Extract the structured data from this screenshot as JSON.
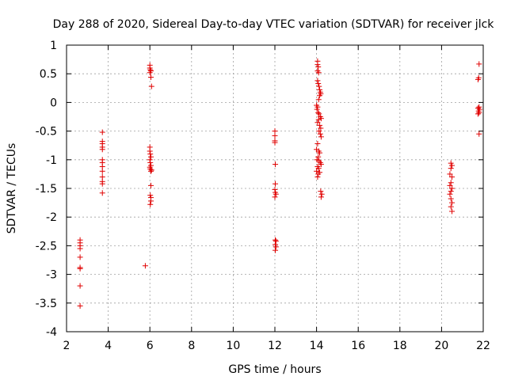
{
  "chart_data": {
    "type": "scatter",
    "title": "Day 288 of 2020, Sidereal Day-to-day VTEC variation (SDTVAR) for receiver jlck",
    "xlabel": "GPS time / hours",
    "ylabel": "SDTVAR / TECUs",
    "xlim": [
      2,
      22
    ],
    "ylim": [
      -4,
      1
    ],
    "xticks": [
      2,
      4,
      6,
      8,
      10,
      12,
      14,
      16,
      18,
      20,
      22
    ],
    "yticks": [
      -4,
      -3.5,
      -3,
      -2.5,
      -2,
      -1.5,
      -1,
      -0.5,
      0,
      0.5,
      1
    ],
    "xtick_labels": [
      "2",
      "4",
      "6",
      "8",
      "10",
      "12",
      "14",
      "16",
      "18",
      "20",
      "22"
    ],
    "ytick_labels": [
      "-4",
      "-3.5",
      "-3",
      "-2.5",
      "-2",
      "-1.5",
      "-1",
      "-0.5",
      "0",
      "0.5",
      "1"
    ],
    "grid": true,
    "marker": "+",
    "marker_color": "#e00000",
    "series": [
      {
        "name": "SDTVAR",
        "points": [
          [
            2.65,
            -2.4
          ],
          [
            2.65,
            -2.45
          ],
          [
            2.65,
            -2.5
          ],
          [
            2.65,
            -2.55
          ],
          [
            2.65,
            -2.7
          ],
          [
            2.65,
            -2.88
          ],
          [
            2.65,
            -2.9
          ],
          [
            2.65,
            -3.2
          ],
          [
            2.65,
            -3.55
          ],
          [
            3.72,
            -0.52
          ],
          [
            3.72,
            -0.68
          ],
          [
            3.72,
            -0.72
          ],
          [
            3.72,
            -0.78
          ],
          [
            3.72,
            -0.82
          ],
          [
            3.72,
            -1.0
          ],
          [
            3.72,
            -1.05
          ],
          [
            3.72,
            -1.12
          ],
          [
            3.72,
            -1.2
          ],
          [
            3.72,
            -1.3
          ],
          [
            3.72,
            -1.38
          ],
          [
            3.72,
            -1.42
          ],
          [
            3.72,
            -1.58
          ],
          [
            5.78,
            -2.85
          ],
          [
            6.0,
            0.65
          ],
          [
            6.0,
            0.6
          ],
          [
            6.02,
            0.57
          ],
          [
            6.05,
            0.55
          ],
          [
            6.0,
            0.52
          ],
          [
            6.05,
            0.44
          ],
          [
            6.08,
            0.28
          ],
          [
            6.0,
            -0.78
          ],
          [
            6.0,
            -0.85
          ],
          [
            6.02,
            -0.9
          ],
          [
            6.05,
            -0.95
          ],
          [
            6.0,
            -1.0
          ],
          [
            6.02,
            -1.05
          ],
          [
            6.05,
            -1.1
          ],
          [
            6.0,
            -1.13
          ],
          [
            6.02,
            -1.16
          ],
          [
            6.05,
            -1.2
          ],
          [
            6.08,
            -1.18
          ],
          [
            6.05,
            -1.45
          ],
          [
            6.02,
            -1.62
          ],
          [
            6.05,
            -1.66
          ],
          [
            6.05,
            -1.72
          ],
          [
            6.02,
            -1.78
          ],
          [
            12.0,
            -0.5
          ],
          [
            12.0,
            -0.58
          ],
          [
            12.0,
            -0.67
          ],
          [
            12.0,
            -0.7
          ],
          [
            12.02,
            -1.08
          ],
          [
            12.02,
            -1.42
          ],
          [
            12.0,
            -1.52
          ],
          [
            12.02,
            -1.57
          ],
          [
            12.05,
            -1.6
          ],
          [
            12.0,
            -1.65
          ],
          [
            12.02,
            -2.4
          ],
          [
            12.05,
            -2.42
          ],
          [
            12.02,
            -2.48
          ],
          [
            12.05,
            -2.52
          ],
          [
            12.02,
            -2.58
          ],
          [
            14.05,
            0.72
          ],
          [
            14.05,
            0.66
          ],
          [
            14.08,
            0.62
          ],
          [
            14.05,
            0.55
          ],
          [
            14.1,
            0.52
          ],
          [
            14.05,
            0.38
          ],
          [
            14.08,
            0.33
          ],
          [
            14.12,
            0.28
          ],
          [
            14.15,
            0.22
          ],
          [
            14.18,
            0.18
          ],
          [
            14.2,
            0.15
          ],
          [
            14.15,
            0.12
          ],
          [
            14.1,
            0.05
          ],
          [
            14.0,
            -0.05
          ],
          [
            14.05,
            -0.08
          ],
          [
            14.02,
            -0.12
          ],
          [
            14.08,
            -0.18
          ],
          [
            14.12,
            -0.2
          ],
          [
            14.18,
            -0.25
          ],
          [
            14.22,
            -0.28
          ],
          [
            14.1,
            -0.3
          ],
          [
            14.05,
            -0.35
          ],
          [
            14.15,
            -0.4
          ],
          [
            14.2,
            -0.45
          ],
          [
            14.12,
            -0.5
          ],
          [
            14.18,
            -0.55
          ],
          [
            14.22,
            -0.6
          ],
          [
            14.05,
            -0.72
          ],
          [
            14.0,
            -0.82
          ],
          [
            14.1,
            -0.85
          ],
          [
            14.15,
            -0.88
          ],
          [
            14.08,
            -0.95
          ],
          [
            14.02,
            -1.0
          ],
          [
            14.12,
            -1.02
          ],
          [
            14.18,
            -1.05
          ],
          [
            14.22,
            -1.08
          ],
          [
            14.05,
            -1.12
          ],
          [
            14.1,
            -1.15
          ],
          [
            14.0,
            -1.2
          ],
          [
            14.15,
            -1.22
          ],
          [
            14.08,
            -1.25
          ],
          [
            14.05,
            -1.3
          ],
          [
            14.2,
            -1.55
          ],
          [
            14.25,
            -1.6
          ],
          [
            14.22,
            -1.65
          ],
          [
            20.45,
            -1.06
          ],
          [
            20.5,
            -1.1
          ],
          [
            20.45,
            -1.15
          ],
          [
            20.4,
            -1.25
          ],
          [
            20.5,
            -1.3
          ],
          [
            20.45,
            -1.4
          ],
          [
            20.4,
            -1.45
          ],
          [
            20.5,
            -1.5
          ],
          [
            20.45,
            -1.55
          ],
          [
            20.4,
            -1.6
          ],
          [
            20.45,
            -1.68
          ],
          [
            20.5,
            -1.75
          ],
          [
            20.45,
            -1.82
          ],
          [
            20.5,
            -1.9
          ],
          [
            21.8,
            0.67
          ],
          [
            21.78,
            0.43
          ],
          [
            21.75,
            0.4
          ],
          [
            21.8,
            -0.08
          ],
          [
            21.75,
            -0.1
          ],
          [
            21.82,
            -0.12
          ],
          [
            21.78,
            -0.15
          ],
          [
            21.8,
            -0.18
          ],
          [
            21.75,
            -0.2
          ],
          [
            21.8,
            -0.55
          ]
        ]
      }
    ]
  }
}
